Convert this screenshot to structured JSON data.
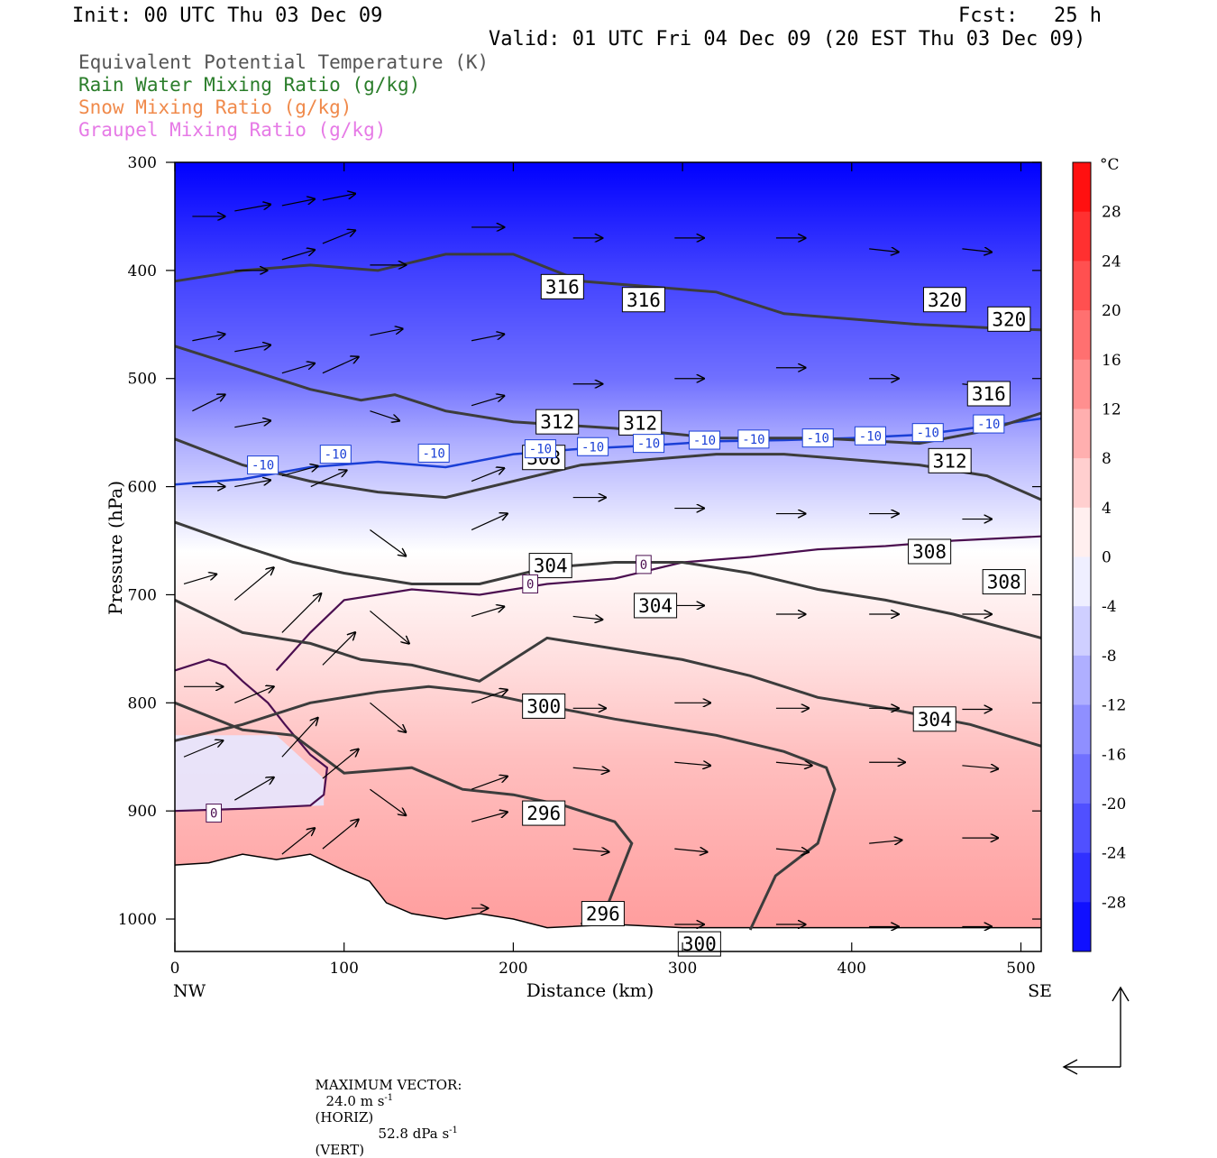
{
  "header": {
    "init": "Init: 00 UTC Thu 03 Dec 09",
    "fcst": "Fcst:   25 h",
    "valid": "Valid: 01 UTC Fri 04 Dec 09 (20 EST Thu 03 Dec 09)"
  },
  "legend": [
    {
      "label": "Equivalent Potential Temperature (K)",
      "color": "#555555"
    },
    {
      "label": "Rain Water Mixing Ratio (g/kg)",
      "color": "#2a7d2a"
    },
    {
      "label": "Snow Mixing Ratio (g/kg)",
      "color": "#f08a4b"
    },
    {
      "label": "Graupel Mixing Ratio (g/kg)",
      "color": "#e67ae6"
    }
  ],
  "footer": {
    "max_vector_label": "MAXIMUM VECTOR:",
    "horiz": "24.0 m s",
    "horiz_sup": "-1",
    "horiz_tag": "(HORIZ)",
    "vert": "52.8 dPa s",
    "vert_sup": "-1",
    "vert_tag": "(VERT)"
  },
  "chart_data": {
    "type": "heatmap",
    "xlabel": "Distance (km)",
    "ylabel": "Pressure (hPa)",
    "xlim": [
      0,
      512
    ],
    "ylim": [
      1030,
      300
    ],
    "x_ticks": [
      0,
      100,
      200,
      300,
      400,
      500
    ],
    "y_ticks": [
      300,
      400,
      500,
      600,
      700,
      800,
      900,
      1000
    ],
    "x_end_labels": {
      "left": "NW",
      "right": "SE"
    },
    "colorbar": {
      "unit": "°C",
      "min": -32,
      "max": 32,
      "tick_labels": [
        28,
        24,
        20,
        16,
        12,
        8,
        4,
        0,
        -4,
        -8,
        -12,
        -16,
        -20,
        -24,
        -28
      ],
      "cold_color": "#0000ff",
      "warm_color": "#ff0000",
      "neutral_color": "#ffffff"
    },
    "temperature_field": {
      "isotherm_minus10": [
        [
          0,
          598
        ],
        [
          40,
          593
        ],
        [
          80,
          582
        ],
        [
          120,
          577
        ],
        [
          160,
          582
        ],
        [
          200,
          570
        ],
        [
          240,
          565
        ],
        [
          280,
          562
        ],
        [
          320,
          558
        ],
        [
          360,
          557
        ],
        [
          400,
          555
        ],
        [
          440,
          552
        ],
        [
          480,
          544
        ],
        [
          512,
          537
        ]
      ],
      "isotherm_0": [
        [
          0,
          900
        ],
        [
          40,
          898
        ],
        [
          80,
          895
        ],
        [
          88,
          885
        ],
        [
          90,
          860
        ],
        [
          80,
          848
        ],
        [
          65,
          820
        ],
        [
          55,
          800
        ],
        [
          40,
          780
        ],
        [
          30,
          765
        ],
        [
          20,
          760
        ],
        [
          0,
          770
        ]
      ],
      "isotherm_0_upper": [
        [
          60,
          770
        ],
        [
          80,
          735
        ],
        [
          100,
          705
        ],
        [
          140,
          695
        ],
        [
          180,
          700
        ],
        [
          220,
          690
        ],
        [
          260,
          685
        ],
        [
          300,
          670
        ],
        [
          340,
          665
        ],
        [
          380,
          658
        ],
        [
          420,
          655
        ],
        [
          460,
          650
        ],
        [
          512,
          646
        ]
      ],
      "isotherm_0_labels": [
        {
          "x": 23,
          "p": 902,
          "text": "0"
        },
        {
          "x": 210,
          "p": 690,
          "text": "0"
        },
        {
          "x": 277,
          "p": 672,
          "text": "0"
        }
      ],
      "isotherm_minus10_labels": [
        {
          "x": 52,
          "p": 580,
          "text": "-10"
        },
        {
          "x": 95,
          "p": 570,
          "text": "-10"
        },
        {
          "x": 153,
          "p": 569,
          "text": "-10"
        },
        {
          "x": 216,
          "p": 565,
          "text": "-10"
        },
        {
          "x": 247,
          "p": 563,
          "text": "-10"
        },
        {
          "x": 280,
          "p": 560,
          "text": "-10"
        },
        {
          "x": 313,
          "p": 557,
          "text": "-10"
        },
        {
          "x": 342,
          "p": 556,
          "text": "-10"
        },
        {
          "x": 380,
          "p": 555,
          "text": "-10"
        },
        {
          "x": 411,
          "p": 553,
          "text": "-10"
        },
        {
          "x": 445,
          "p": 550,
          "text": "-10"
        },
        {
          "x": 481,
          "p": 542,
          "text": "-10"
        }
      ],
      "warm_core_max_c": 12,
      "cold_top_min_c": -32
    },
    "theta_e_contours": [
      {
        "value": 296,
        "points": [
          [
            0,
            800
          ],
          [
            40,
            825
          ],
          [
            70,
            830
          ],
          [
            100,
            865
          ],
          [
            140,
            860
          ],
          [
            170,
            880
          ],
          [
            200,
            885
          ],
          [
            230,
            895
          ],
          [
            260,
            910
          ],
          [
            270,
            930
          ],
          [
            255,
            990
          ],
          [
            240,
            1005
          ]
        ],
        "labels": [
          {
            "x": 218,
            "p": 902
          },
          {
            "x": 253,
            "p": 995
          }
        ]
      },
      {
        "value": 300,
        "points": [
          [
            0,
            835
          ],
          [
            40,
            820
          ],
          [
            80,
            800
          ],
          [
            120,
            790
          ],
          [
            150,
            785
          ],
          [
            180,
            790
          ],
          [
            210,
            800
          ],
          [
            260,
            815
          ],
          [
            320,
            830
          ],
          [
            360,
            845
          ],
          [
            385,
            860
          ],
          [
            390,
            880
          ],
          [
            380,
            930
          ],
          [
            355,
            960
          ],
          [
            340,
            1010
          ]
        ],
        "labels": [
          {
            "x": 218,
            "p": 803
          },
          {
            "x": 310,
            "p": 1023
          }
        ]
      },
      {
        "value": 304,
        "points": [
          [
            0,
            705
          ],
          [
            40,
            735
          ],
          [
            80,
            745
          ],
          [
            110,
            760
          ],
          [
            140,
            765
          ],
          [
            180,
            780
          ],
          [
            220,
            740
          ],
          [
            260,
            750
          ],
          [
            300,
            760
          ],
          [
            340,
            775
          ],
          [
            380,
            795
          ],
          [
            420,
            805
          ],
          [
            470,
            820
          ],
          [
            512,
            840
          ]
        ],
        "labels": [
          {
            "x": 222,
            "p": 673
          },
          {
            "x": 284,
            "p": 710
          },
          {
            "x": 449,
            "p": 815
          }
        ]
      },
      {
        "value": 308,
        "points": [
          [
            0,
            633
          ],
          [
            40,
            655
          ],
          [
            70,
            670
          ],
          [
            100,
            680
          ],
          [
            140,
            690
          ],
          [
            180,
            690
          ],
          [
            220,
            675
          ],
          [
            260,
            670
          ],
          [
            300,
            670
          ],
          [
            340,
            680
          ],
          [
            380,
            695
          ],
          [
            420,
            705
          ],
          [
            460,
            718
          ],
          [
            512,
            740
          ]
        ],
        "labels": [
          {
            "x": 218,
            "p": 573
          },
          {
            "x": 446,
            "p": 660
          },
          {
            "x": 490,
            "p": 688
          }
        ]
      },
      {
        "value": 312,
        "points": [
          [
            0,
            556
          ],
          [
            40,
            580
          ],
          [
            80,
            595
          ],
          [
            120,
            605
          ],
          [
            160,
            610
          ],
          [
            200,
            595
          ],
          [
            240,
            580
          ],
          [
            280,
            575
          ],
          [
            320,
            570
          ],
          [
            360,
            570
          ],
          [
            400,
            575
          ],
          [
            440,
            580
          ],
          [
            480,
            590
          ],
          [
            512,
            612
          ]
        ],
        "labels": [
          {
            "x": 226,
            "p": 540
          },
          {
            "x": 275,
            "p": 541
          },
          {
            "x": 458,
            "p": 576
          }
        ]
      },
      {
        "value": 316,
        "points": [
          [
            0,
            470
          ],
          [
            40,
            490
          ],
          [
            80,
            510
          ],
          [
            110,
            520
          ],
          [
            130,
            515
          ],
          [
            160,
            530
          ],
          [
            200,
            540
          ],
          [
            260,
            546
          ],
          [
            320,
            555
          ],
          [
            380,
            555
          ],
          [
            440,
            560
          ],
          [
            480,
            548
          ],
          [
            512,
            532
          ]
        ],
        "labels": [
          {
            "x": 229,
            "p": 415
          },
          {
            "x": 277,
            "p": 427
          },
          {
            "x": 481,
            "p": 514
          }
        ]
      },
      {
        "value": 320,
        "points": [
          [
            0,
            410
          ],
          [
            40,
            400
          ],
          [
            80,
            395
          ],
          [
            120,
            400
          ],
          [
            160,
            385
          ],
          [
            200,
            385
          ],
          [
            240,
            410
          ],
          [
            280,
            415
          ],
          [
            320,
            420
          ],
          [
            360,
            440
          ],
          [
            400,
            445
          ],
          [
            440,
            450
          ],
          [
            480,
            453
          ],
          [
            512,
            455
          ]
        ],
        "labels": [
          {
            "x": 455,
            "p": 427
          },
          {
            "x": 493,
            "p": 445
          }
        ]
      }
    ],
    "wind_vectors_note": "arrows show horizontal/vertical circulation; max 24.0 m/s horiz, 52.8 dPa/s vert",
    "grid": false,
    "legend_position": "top-left"
  }
}
